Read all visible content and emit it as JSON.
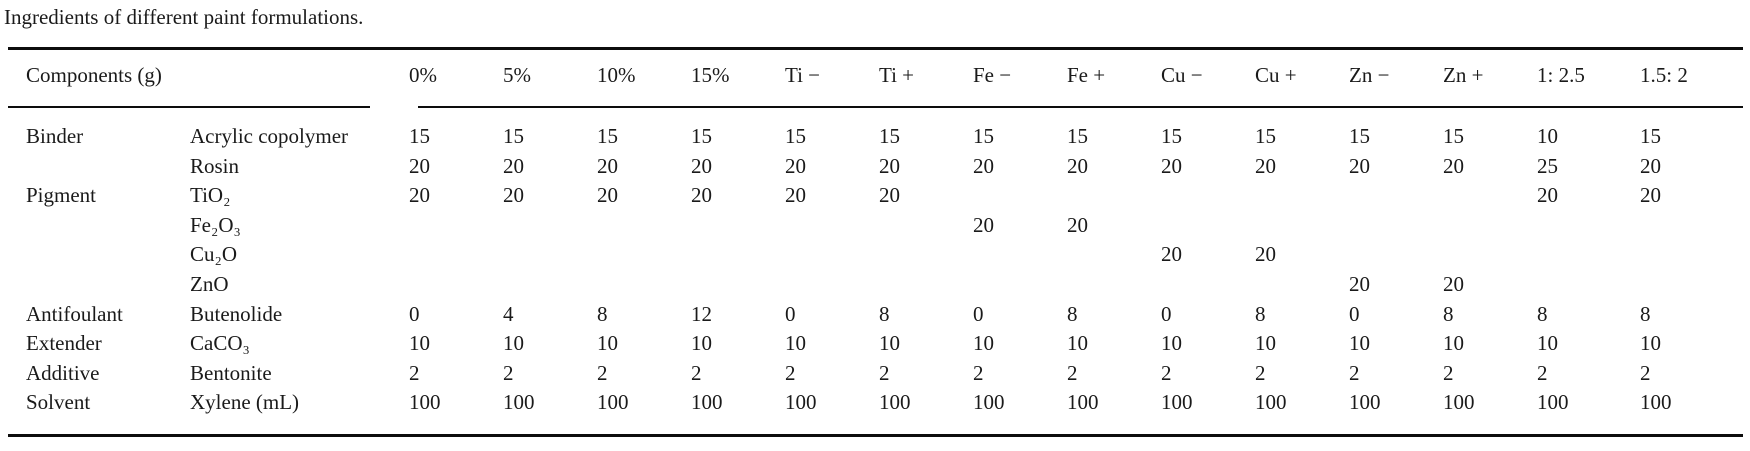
{
  "title": "Ingredients of different paint formulations.",
  "table": {
    "components_header": "Components (g)",
    "column_headers": [
      "0%",
      "5%",
      "10%",
      "15%",
      "Ti −",
      "Ti +",
      "Fe −",
      "Fe +",
      "Cu −",
      "Cu +",
      "Zn −",
      "Zn +",
      "1: 2.5",
      "1.5: 2"
    ],
    "rows": [
      {
        "category": "Binder",
        "component": "Acrylic copolymer",
        "values": [
          "15",
          "15",
          "15",
          "15",
          "15",
          "15",
          "15",
          "15",
          "15",
          "15",
          "15",
          "15",
          "10",
          "15"
        ]
      },
      {
        "category": "",
        "component": "Rosin",
        "values": [
          "20",
          "20",
          "20",
          "20",
          "20",
          "20",
          "20",
          "20",
          "20",
          "20",
          "20",
          "20",
          "25",
          "20"
        ]
      },
      {
        "category": "Pigment",
        "component": "TiO₂",
        "values": [
          "20",
          "20",
          "20",
          "20",
          "20",
          "20",
          "",
          "",
          "",
          "",
          "",
          "",
          "20",
          "20"
        ]
      },
      {
        "category": "",
        "component": "Fe₂O₃",
        "values": [
          "",
          "",
          "",
          "",
          "",
          "",
          "20",
          "20",
          "",
          "",
          "",
          "",
          "",
          ""
        ]
      },
      {
        "category": "",
        "component": "Cu₂O",
        "values": [
          "",
          "",
          "",
          "",
          "",
          "",
          "",
          "",
          "20",
          "20",
          "",
          "",
          "",
          ""
        ]
      },
      {
        "category": "",
        "component": "ZnO",
        "values": [
          "",
          "",
          "",
          "",
          "",
          "",
          "",
          "",
          "",
          "",
          "20",
          "20",
          "",
          ""
        ]
      },
      {
        "category": "Antifoulant",
        "component": "Butenolide",
        "values": [
          "0",
          "4",
          "8",
          "12",
          "0",
          "8",
          "0",
          "8",
          "0",
          "8",
          "0",
          "8",
          "8",
          "8"
        ]
      },
      {
        "category": "Extender",
        "component": "CaCO₃",
        "values": [
          "10",
          "10",
          "10",
          "10",
          "10",
          "10",
          "10",
          "10",
          "10",
          "10",
          "10",
          "10",
          "10",
          "10"
        ]
      },
      {
        "category": "Additive",
        "component": "Bentonite",
        "values": [
          "2",
          "2",
          "2",
          "2",
          "2",
          "2",
          "2",
          "2",
          "2",
          "2",
          "2",
          "2",
          "2",
          "2"
        ]
      },
      {
        "category": "Solvent",
        "component": "Xylene (mL)",
        "values": [
          "100",
          "100",
          "100",
          "100",
          "100",
          "100",
          "100",
          "100",
          "100",
          "100",
          "100",
          "100",
          "100",
          "100"
        ]
      }
    ]
  }
}
